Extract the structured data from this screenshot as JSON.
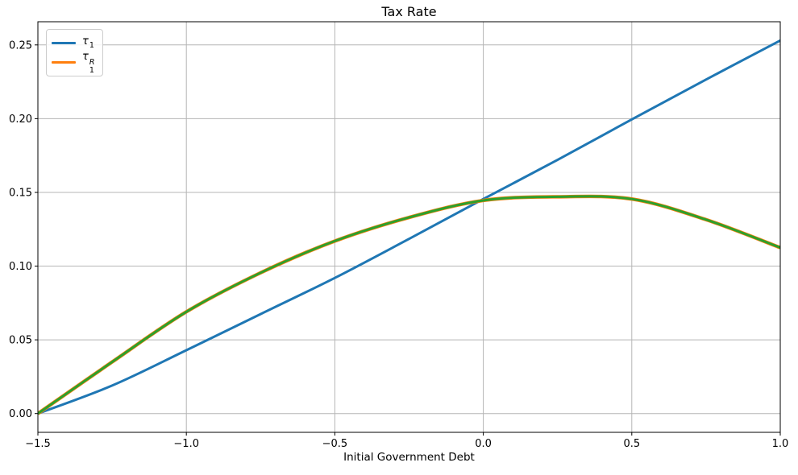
{
  "figure": {
    "background": "#ffffff",
    "grid_color": "#b5b5b5",
    "spine_color": "#000000",
    "text_color": "#000000"
  },
  "chart_data": {
    "type": "line",
    "title": "Tax Rate",
    "xlabel": "Initial Government Debt",
    "ylabel": "",
    "grid": true,
    "legend_position": "upper left",
    "xlim": [
      -1.5,
      1.0
    ],
    "ylim": [
      -0.0127,
      0.2657
    ],
    "x_ticks": [
      -1.5,
      -1.0,
      -0.5,
      0.0,
      0.5,
      1.0
    ],
    "x_tick_labels": [
      "−1.5",
      "−1.0",
      "−0.5",
      "0.0",
      "0.5",
      "1.0"
    ],
    "y_ticks": [
      0.0,
      0.05,
      0.1,
      0.15,
      0.2,
      0.25
    ],
    "y_tick_labels": [
      "0.00",
      "0.05",
      "0.10",
      "0.15",
      "0.20",
      "0.25"
    ],
    "x": [
      -1.5,
      -1.25,
      -1.0,
      -0.75,
      -0.5,
      -0.25,
      0.0,
      0.25,
      0.5,
      0.75,
      1.0
    ],
    "series": [
      {
        "id": "tau1",
        "text": "τ₁",
        "legend": {
          "base": "τ",
          "sub": "1",
          "sup": ""
        },
        "color": "#1f77b4",
        "line_width": 3,
        "values": [
          0.0,
          0.019,
          0.043,
          0.0675,
          0.092,
          0.1185,
          0.1455,
          0.172,
          0.1995,
          0.2265,
          0.253
        ]
      },
      {
        "id": "tau1R",
        "text": "τ₁ᴿ",
        "legend": {
          "base": "τ",
          "sub": "1",
          "sup": "R"
        },
        "color": "#ff7f0e",
        "line_width": 4.4,
        "values": [
          0.0,
          0.035,
          0.069,
          0.0955,
          0.117,
          0.133,
          0.1445,
          0.147,
          0.1455,
          0.1315,
          0.1125
        ]
      },
      {
        "id": "tau1R-overlay",
        "text": "",
        "legend": null,
        "color": "#2ca02c",
        "line_width": 3,
        "values": [
          0.0,
          0.035,
          0.069,
          0.0955,
          0.117,
          0.133,
          0.1445,
          0.147,
          0.1455,
          0.1315,
          0.1125
        ]
      }
    ]
  }
}
